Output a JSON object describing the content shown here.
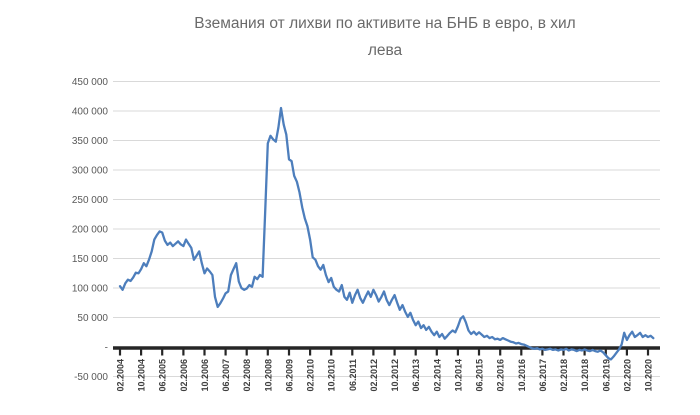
{
  "chart": {
    "title_lines": [
      "Вземания от лихви по активите на БНБ в евро, в хил",
      "лева"
    ]
  },
  "chart_data": {
    "type": "line",
    "title": "Вземания от лихви по активите на БНБ в евро, в хил лева",
    "xlabel": "",
    "ylabel": "",
    "x_unit": "month",
    "x_start": "02.2004",
    "x_end": "12.2020",
    "x_tick_every_months": 8,
    "x_tick_labels": [
      "02.2004",
      "10.2004",
      "06.2005",
      "02.2006",
      "10.2006",
      "06.2007",
      "02.2008",
      "10.2008",
      "06.2009",
      "02.2010",
      "10.2010",
      "06.2011",
      "02.2012",
      "10.2012",
      "06.2013",
      "02.2014",
      "10.2014",
      "06.2015",
      "02.2016",
      "10.2016",
      "06.2017",
      "02.2018",
      "10.2018",
      "06.2019",
      "02.2020",
      "10.2020"
    ],
    "ylim": [
      -50000,
      450000
    ],
    "y_tick_step": 50000,
    "y_tick_labels": [
      "450 000",
      "400 000",
      "350 000",
      "300 000",
      "250 000",
      "200 000",
      "150 000",
      "100 000",
      "50 000",
      "-",
      "-50 000"
    ],
    "grid": "horizontal",
    "legend": "none",
    "values": [
      103000,
      97000,
      108000,
      114000,
      112000,
      118000,
      126000,
      125000,
      132000,
      142000,
      137000,
      148000,
      162000,
      182000,
      190000,
      196000,
      194000,
      180000,
      173000,
      177000,
      171000,
      175000,
      179000,
      174000,
      171000,
      182000,
      175000,
      168000,
      148000,
      155000,
      162000,
      142000,
      125000,
      133000,
      128000,
      122000,
      85000,
      68000,
      74000,
      82000,
      91000,
      94000,
      122000,
      132000,
      142000,
      111000,
      100000,
      97000,
      99000,
      105000,
      102000,
      119000,
      115000,
      122000,
      119000,
      230000,
      345000,
      358000,
      352000,
      348000,
      372000,
      405000,
      377000,
      360000,
      318000,
      315000,
      290000,
      280000,
      262000,
      237000,
      218000,
      205000,
      182000,
      152000,
      148000,
      137000,
      131000,
      139000,
      122000,
      110000,
      117000,
      102000,
      97000,
      94000,
      105000,
      85000,
      80000,
      92000,
      75000,
      88000,
      97000,
      83000,
      75000,
      85000,
      94000,
      85000,
      97000,
      88000,
      77000,
      85000,
      94000,
      80000,
      71000,
      80000,
      88000,
      75000,
      63000,
      71000,
      60000,
      51000,
      58000,
      46000,
      37000,
      43000,
      32000,
      37000,
      29000,
      34000,
      26000,
      20000,
      26000,
      17000,
      22000,
      14000,
      19000,
      24000,
      28000,
      25000,
      35000,
      48000,
      52000,
      42000,
      28000,
      22000,
      26000,
      21000,
      25000,
      21000,
      17000,
      19000,
      15000,
      17000,
      13000,
      14000,
      12000,
      15000,
      13000,
      11000,
      9000,
      8000,
      6000,
      7000,
      5000,
      4000,
      2000,
      0,
      -2000,
      -3000,
      -2000,
      -4000,
      -3000,
      -5000,
      -4000,
      -3000,
      -5000,
      -4000,
      -6000,
      -4000,
      -5000,
      -3000,
      -6000,
      -4000,
      -5000,
      -7000,
      -5000,
      -6000,
      -4000,
      -6000,
      -7000,
      -5000,
      -7000,
      -8000,
      -6000,
      -9000,
      -14000,
      -19000,
      -21000,
      -16000,
      -10000,
      -4000,
      4000,
      24000,
      12000,
      20000,
      26000,
      17000,
      20000,
      24000,
      17000,
      20000,
      17000,
      19000,
      15000
    ]
  },
  "colors": {
    "background": "#ffffff",
    "line": "#4d7ebc",
    "grid": "#d9d9d9",
    "axis": "#262626",
    "title_text": "#6a6a6a",
    "y_label_text": "#595959",
    "x_label_text": "#3f3f3f"
  }
}
